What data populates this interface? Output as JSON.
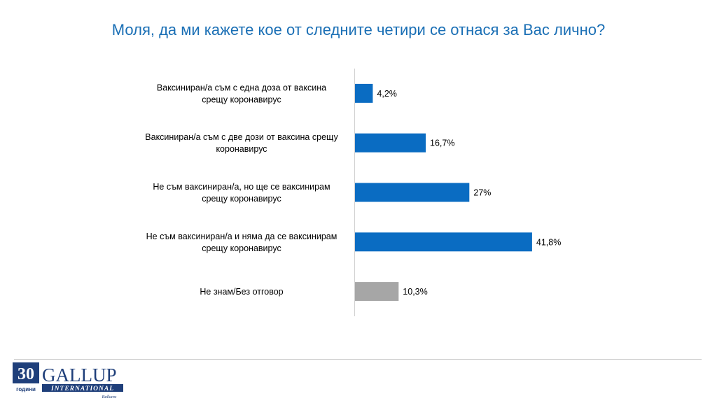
{
  "title": "Моля, да ми кажете кое от следните четири се отнася за Вас лично?",
  "colors": {
    "title": "#1a6fb5",
    "primary_bar": "#0a6cc2",
    "secondary_bar": "#a6a6a6",
    "axis": "#d0d0d0"
  },
  "logo": {
    "number": "30",
    "years": "години",
    "brand": "GALLUP",
    "sub": "INTERNATIONAL",
    "region": "Balkans"
  },
  "chart_data": {
    "type": "bar",
    "orientation": "horizontal",
    "categories": [
      [
        "Ваксиниран/а съм с една доза от ваксина",
        "срещу коронавирус"
      ],
      [
        "Ваксиниран/а съм с две дози от ваксина срещу",
        "коронавирус"
      ],
      [
        "Не съм ваксиниран/а, но ще се ваксинирам",
        "срещу коронавирус"
      ],
      [
        "Не съм ваксиниран/а и няма да се ваксинирам",
        "срещу коронавирус"
      ],
      [
        "Не знам/Без отговор"
      ]
    ],
    "values": [
      4.2,
      16.7,
      27,
      41.8,
      10.3
    ],
    "value_labels": [
      "4,2%",
      "16,7%",
      "27%",
      "41,8%",
      "10,3%"
    ],
    "bar_colors": [
      "#0a6cc2",
      "#0a6cc2",
      "#0a6cc2",
      "#0a6cc2",
      "#a6a6a6"
    ],
    "xlim": [
      0,
      45
    ],
    "grid": false,
    "legend": "none"
  }
}
